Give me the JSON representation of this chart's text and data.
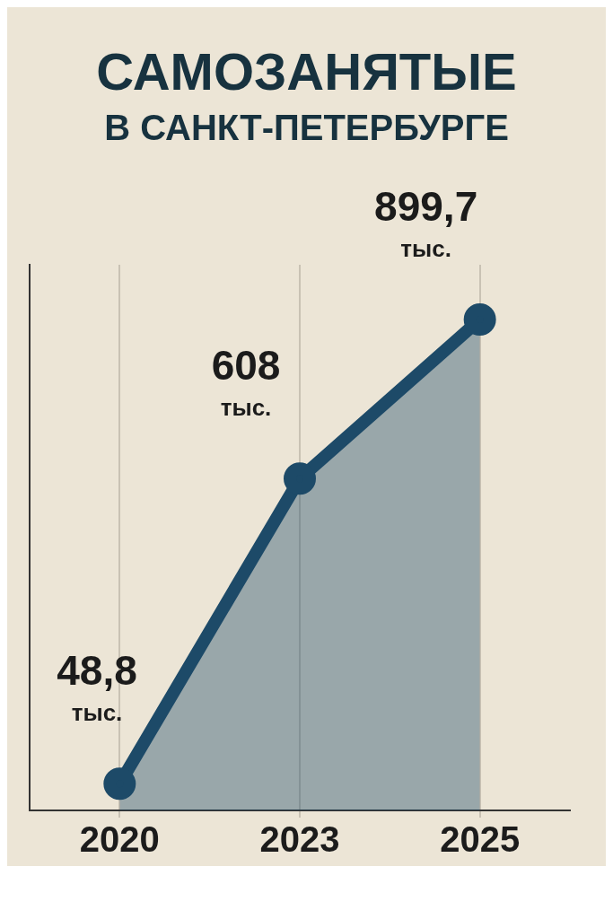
{
  "chart_data": {
    "type": "area",
    "title": "САМОЗАНЯТЫЕ",
    "subtitle": "В САНКТ-ПЕТЕРБУРГЕ",
    "categories": [
      "2020",
      "2023",
      "2025"
    ],
    "series": [
      {
        "color": "#1d4a68",
        "values": [
          48.8,
          608,
          899.7
        ],
        "value_labels": [
          "48,8\nтыс.",
          "608\nтыс.",
          "899,7\nтыс."
        ]
      }
    ],
    "ylim": [
      0,
      1000
    ],
    "grid": "x",
    "tick_labels": "x",
    "marker": "circle",
    "line_style": "solid",
    "legend": false
  }
}
